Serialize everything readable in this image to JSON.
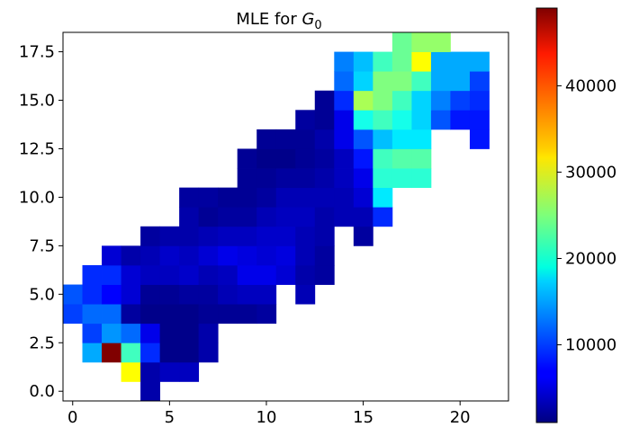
{
  "chart_data": {
    "type": "heatmap",
    "title_prefix": "MLE for ",
    "title_var": "G",
    "title_sub": "0",
    "xlabel": "",
    "ylabel": "",
    "xlim": [
      -0.5,
      22.5
    ],
    "ylim": [
      -0.5,
      18.5
    ],
    "x_ticks": [
      0,
      5,
      10,
      15,
      20
    ],
    "x_tick_labels": [
      "0",
      "5",
      "10",
      "15",
      "20"
    ],
    "y_ticks": [
      0.0,
      2.5,
      5.0,
      7.5,
      10.0,
      12.5,
      15.0,
      17.5
    ],
    "y_tick_labels": [
      "0.0",
      "2.5",
      "5.0",
      "7.5",
      "10.0",
      "12.5",
      "15.0",
      "17.5"
    ],
    "colormap": "jet",
    "value_range": [
      1000,
      49000
    ],
    "colorbar_ticks": [
      10000,
      20000,
      30000,
      40000
    ],
    "colorbar_tick_labels": [
      "10000",
      "20000",
      "30000",
      "40000"
    ],
    "grid": false,
    "cells": [
      [
        4,
        0,
        3000
      ],
      [
        3,
        1,
        31000
      ],
      [
        4,
        1,
        3000
      ],
      [
        5,
        1,
        4000
      ],
      [
        6,
        1,
        4000
      ],
      [
        1,
        2,
        15000
      ],
      [
        2,
        2,
        49000
      ],
      [
        3,
        2,
        22000
      ],
      [
        4,
        2,
        9000
      ],
      [
        5,
        2,
        1500
      ],
      [
        6,
        2,
        1500
      ],
      [
        7,
        2,
        3000
      ],
      [
        1,
        3,
        10000
      ],
      [
        2,
        3,
        14000
      ],
      [
        3,
        3,
        12000
      ],
      [
        4,
        3,
        6000
      ],
      [
        5,
        3,
        1500
      ],
      [
        6,
        3,
        1500
      ],
      [
        7,
        3,
        3000
      ],
      [
        0,
        4,
        10000
      ],
      [
        1,
        4,
        12000
      ],
      [
        2,
        4,
        12000
      ],
      [
        3,
        4,
        2500
      ],
      [
        4,
        4,
        1500
      ],
      [
        5,
        4,
        1500
      ],
      [
        6,
        4,
        1500
      ],
      [
        7,
        4,
        2000
      ],
      [
        8,
        4,
        2000
      ],
      [
        9,
        4,
        2000
      ],
      [
        10,
        4,
        2500
      ],
      [
        0,
        5,
        11000
      ],
      [
        1,
        5,
        9000
      ],
      [
        2,
        5,
        7000
      ],
      [
        3,
        5,
        5000
      ],
      [
        4,
        5,
        2000
      ],
      [
        5,
        5,
        2000
      ],
      [
        6,
        5,
        2500
      ],
      [
        7,
        5,
        2500
      ],
      [
        8,
        5,
        3500
      ],
      [
        9,
        5,
        4000
      ],
      [
        10,
        5,
        4000
      ],
      [
        12,
        5,
        3500
      ],
      [
        1,
        6,
        9000
      ],
      [
        2,
        6,
        9000
      ],
      [
        3,
        6,
        5000
      ],
      [
        4,
        6,
        4000
      ],
      [
        5,
        6,
        4000
      ],
      [
        6,
        6,
        4500
      ],
      [
        7,
        6,
        3500
      ],
      [
        8,
        6,
        4000
      ],
      [
        9,
        6,
        6000
      ],
      [
        10,
        6,
        6000
      ],
      [
        11,
        6,
        5000
      ],
      [
        12,
        6,
        3000
      ],
      [
        13,
        6,
        2500
      ],
      [
        2,
        7,
        5000
      ],
      [
        3,
        7,
        3000
      ],
      [
        4,
        7,
        3500
      ],
      [
        5,
        7,
        4500
      ],
      [
        6,
        7,
        4000
      ],
      [
        7,
        7,
        5000
      ],
      [
        8,
        7,
        6000
      ],
      [
        9,
        7,
        5500
      ],
      [
        10,
        7,
        5000
      ],
      [
        11,
        7,
        5500
      ],
      [
        12,
        7,
        3500
      ],
      [
        13,
        7,
        2500
      ],
      [
        4,
        8,
        2500
      ],
      [
        5,
        8,
        3000
      ],
      [
        6,
        8,
        3000
      ],
      [
        7,
        8,
        3500
      ],
      [
        8,
        8,
        4000
      ],
      [
        9,
        8,
        4000
      ],
      [
        10,
        8,
        4500
      ],
      [
        11,
        8,
        4500
      ],
      [
        12,
        8,
        3500
      ],
      [
        13,
        8,
        3000
      ],
      [
        15,
        8,
        2500
      ],
      [
        6,
        9,
        3000
      ],
      [
        7,
        9,
        2000
      ],
      [
        8,
        9,
        2500
      ],
      [
        9,
        9,
        2500
      ],
      [
        10,
        9,
        3500
      ],
      [
        11,
        9,
        4000
      ],
      [
        12,
        9,
        4000
      ],
      [
        13,
        9,
        3000
      ],
      [
        14,
        9,
        3500
      ],
      [
        15,
        9,
        3500
      ],
      [
        16,
        9,
        9000
      ],
      [
        6,
        10,
        2500
      ],
      [
        7,
        10,
        2500
      ],
      [
        8,
        10,
        2000
      ],
      [
        9,
        10,
        2000
      ],
      [
        10,
        10,
        2500
      ],
      [
        11,
        10,
        3500
      ],
      [
        12,
        10,
        3500
      ],
      [
        13,
        10,
        3500
      ],
      [
        14,
        10,
        3500
      ],
      [
        15,
        10,
        5000
      ],
      [
        16,
        10,
        18000
      ],
      [
        9,
        11,
        2000
      ],
      [
        10,
        11,
        2000
      ],
      [
        11,
        11,
        2500
      ],
      [
        12,
        11,
        2500
      ],
      [
        13,
        11,
        3000
      ],
      [
        14,
        11,
        4000
      ],
      [
        15,
        11,
        6000
      ],
      [
        16,
        11,
        21000
      ],
      [
        17,
        11,
        21000
      ],
      [
        18,
        11,
        21000
      ],
      [
        9,
        12,
        2000
      ],
      [
        10,
        12,
        1500
      ],
      [
        11,
        12,
        1500
      ],
      [
        12,
        12,
        2000
      ],
      [
        13,
        12,
        2500
      ],
      [
        14,
        12,
        4000
      ],
      [
        15,
        12,
        8000
      ],
      [
        16,
        12,
        22000
      ],
      [
        17,
        12,
        23000
      ],
      [
        18,
        12,
        23000
      ],
      [
        10,
        13,
        2000
      ],
      [
        11,
        13,
        2000
      ],
      [
        12,
        13,
        2000
      ],
      [
        13,
        13,
        3000
      ],
      [
        14,
        13,
        6000
      ],
      [
        15,
        13,
        11000
      ],
      [
        16,
        13,
        16000
      ],
      [
        17,
        13,
        18000
      ],
      [
        18,
        13,
        18000
      ],
      [
        21,
        13,
        8000
      ],
      [
        12,
        14,
        2500
      ],
      [
        13,
        14,
        2000
      ],
      [
        14,
        14,
        6000
      ],
      [
        15,
        14,
        20000
      ],
      [
        16,
        14,
        22000
      ],
      [
        17,
        14,
        20000
      ],
      [
        18,
        14,
        17000
      ],
      [
        19,
        14,
        11000
      ],
      [
        20,
        14,
        8000
      ],
      [
        21,
        14,
        8000
      ],
      [
        13,
        15,
        2000
      ],
      [
        14,
        15,
        9000
      ],
      [
        15,
        15,
        27000
      ],
      [
        16,
        15,
        25000
      ],
      [
        17,
        15,
        22000
      ],
      [
        18,
        15,
        17000
      ],
      [
        19,
        15,
        13000
      ],
      [
        20,
        15,
        10000
      ],
      [
        21,
        15,
        9000
      ],
      [
        14,
        16,
        12000
      ],
      [
        15,
        16,
        17000
      ],
      [
        16,
        16,
        25000
      ],
      [
        17,
        16,
        25000
      ],
      [
        18,
        16,
        22000
      ],
      [
        19,
        16,
        15000
      ],
      [
        20,
        16,
        15000
      ],
      [
        21,
        16,
        10000
      ],
      [
        14,
        17,
        13000
      ],
      [
        15,
        17,
        16000
      ],
      [
        16,
        17,
        22000
      ],
      [
        17,
        17,
        24000
      ],
      [
        18,
        17,
        31000
      ],
      [
        19,
        17,
        15000
      ],
      [
        20,
        17,
        15000
      ],
      [
        21,
        17,
        15000
      ],
      [
        17,
        18,
        24000
      ],
      [
        18,
        18,
        26000
      ],
      [
        19,
        18,
        26000
      ]
    ]
  }
}
